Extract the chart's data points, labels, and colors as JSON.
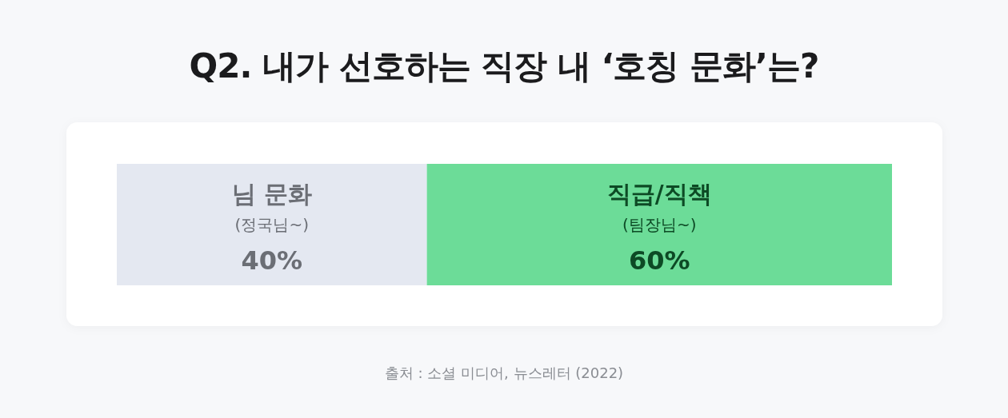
{
  "chart_data": {
    "type": "bar",
    "title": "Q2. 내가 선호하는 직장 내 ‘호칭 문화’는?",
    "orientation": "horizontal",
    "stacked": true,
    "categories": [
      null
    ],
    "series": [
      {
        "name": "님 문화",
        "color": "#e4e8f1",
        "values": [
          40
        ],
        "value_labels": [
          "40%"
        ]
      },
      {
        "name": "직급/직책",
        "color": "#6cdc98",
        "values": [
          60
        ],
        "value_labels": [
          "60%"
        ]
      }
    ],
    "xlim": [
      0,
      100
    ],
    "tick_labels": false,
    "annotations": [
      "(정국님~)",
      "(팀장님~)",
      "출처 : 소셜 미디어, 뉴스레터 (2022)"
    ]
  }
}
